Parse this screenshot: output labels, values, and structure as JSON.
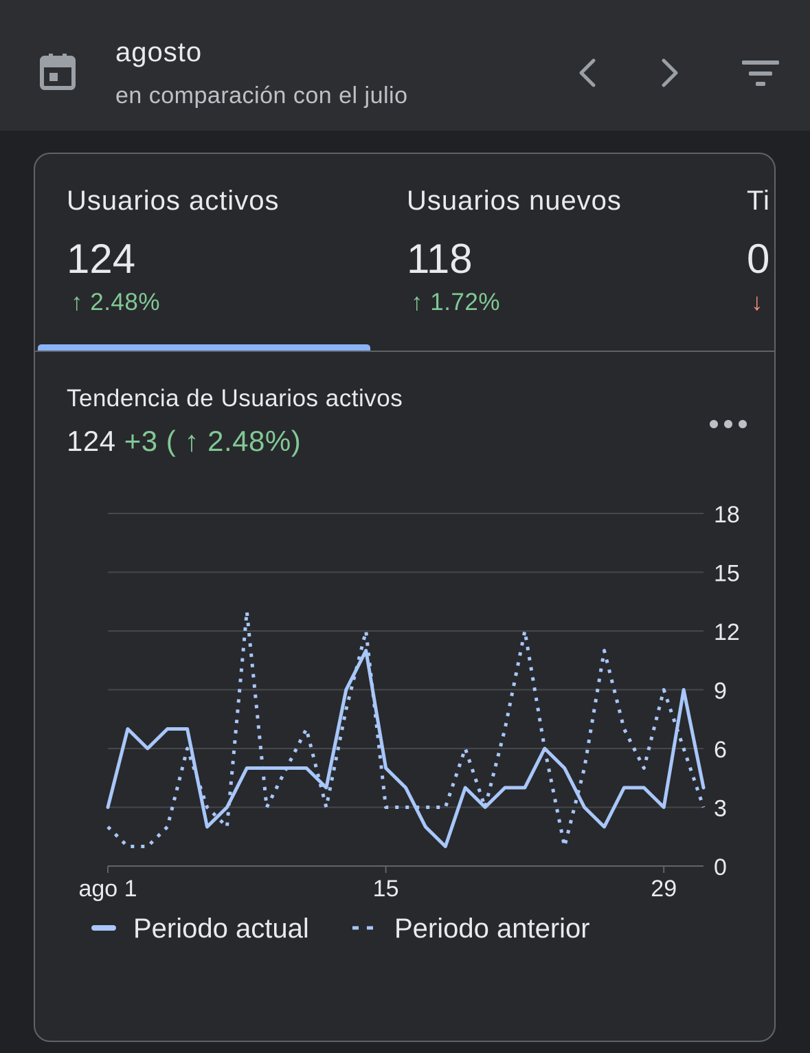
{
  "header": {
    "title": "agosto",
    "subtitle": "en comparación con el julio",
    "icons": {
      "calendar": "calendar-icon",
      "prev": "chevron-left-icon",
      "next": "chevron-right-icon",
      "filter": "filter-icon"
    }
  },
  "metrics": [
    {
      "label": "Usuarios activos",
      "value": "124",
      "change": "↑ 2.48%",
      "trend": "up",
      "selected": true
    },
    {
      "label": "Usuarios nuevos",
      "value": "118",
      "change": "↑ 1.72%",
      "trend": "up",
      "selected": false
    },
    {
      "label": "Ti",
      "value": "0",
      "change": "↓",
      "trend": "down",
      "selected": false
    }
  ],
  "trend": {
    "title": "Tendencia de Usuarios activos",
    "value": "124",
    "change": "+3 ( ↑ 2.48%)"
  },
  "colors": {
    "background": "#202124",
    "card": "#28292d",
    "accent": "#8ab4f8",
    "positive": "#81c995",
    "negative": "#f28b82"
  },
  "chart_data": {
    "type": "line",
    "x": [
      1,
      2,
      3,
      4,
      5,
      6,
      7,
      8,
      9,
      10,
      11,
      12,
      13,
      14,
      15,
      16,
      17,
      18,
      19,
      20,
      21,
      22,
      23,
      24,
      25,
      26,
      27,
      28,
      29,
      30,
      31
    ],
    "x_tick_labels": [
      "ago 1",
      "15",
      "29"
    ],
    "x_tick_values": [
      1,
      15,
      29
    ],
    "y_ticks": [
      0,
      3,
      6,
      9,
      12,
      15,
      18
    ],
    "ylim": [
      0,
      18
    ],
    "grid": true,
    "legend_position": "bottom",
    "series": [
      {
        "name": "Periodo actual",
        "style": "solid",
        "values": [
          3,
          7,
          6,
          7,
          7,
          2,
          3,
          5,
          5,
          5,
          5,
          4,
          9,
          11,
          5,
          4,
          2,
          1,
          4,
          3,
          4,
          4,
          6,
          5,
          3,
          2,
          4,
          4,
          3,
          9,
          4
        ]
      },
      {
        "name": "Periodo anterior",
        "style": "dotted",
        "values": [
          2,
          1,
          1,
          2,
          6,
          3,
          2,
          13,
          3,
          5,
          7,
          3,
          8,
          12,
          3,
          3,
          3,
          3,
          6,
          3,
          7,
          12,
          6,
          1,
          5,
          11,
          7,
          5,
          9,
          6,
          3
        ]
      }
    ]
  }
}
